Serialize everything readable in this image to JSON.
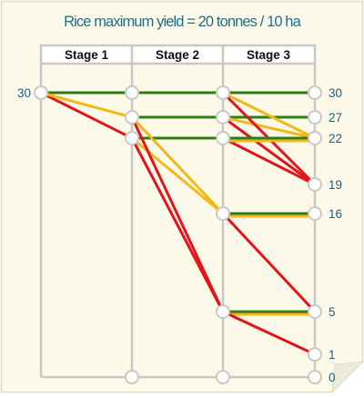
{
  "title": "Rice maximum yield = 20 tonnes / 10 ha",
  "stages": [
    "Stage 1",
    "Stage 2",
    "Stage 3"
  ],
  "start_value": "30",
  "end_values": [
    "30",
    "27",
    "22",
    "19",
    "16",
    "5",
    "1",
    "0"
  ],
  "legend_colors": {
    "green": "#2e7d15",
    "yellow": "#f6b817",
    "red": "#e3141b",
    "frame": "#c9c9c4",
    "node_fill": "#ffffff",
    "text": "#1f5f7a"
  },
  "paths": [
    {
      "color": "green",
      "from": [
        1,
        30
      ],
      "to": [
        2,
        30
      ]
    },
    {
      "color": "red",
      "from": [
        1,
        30
      ],
      "to": [
        2,
        22
      ]
    },
    {
      "color": "yellow",
      "from": [
        1,
        30
      ],
      "to": [
        2,
        27
      ]
    },
    {
      "color": "green",
      "from": [
        2,
        30
      ],
      "to": [
        3,
        30
      ]
    },
    {
      "color": "green",
      "from": [
        2,
        27
      ],
      "to": [
        3,
        27
      ]
    },
    {
      "color": "green",
      "from": [
        2,
        22
      ],
      "to": [
        3,
        22
      ]
    },
    {
      "color": "yellow",
      "from": [
        2,
        27
      ],
      "to": [
        3,
        16
      ]
    },
    {
      "color": "yellow",
      "from": [
        2,
        22
      ],
      "to": [
        3,
        16
      ]
    },
    {
      "color": "red",
      "from": [
        2,
        27
      ],
      "to": [
        3,
        5
      ]
    },
    {
      "color": "red",
      "from": [
        2,
        22
      ],
      "to": [
        3,
        5
      ]
    },
    {
      "color": "green",
      "from": [
        3,
        30
      ],
      "to": [
        4,
        30
      ]
    },
    {
      "color": "green",
      "from": [
        3,
        27
      ],
      "to": [
        4,
        27
      ]
    },
    {
      "color": "yellow",
      "from": [
        3,
        30
      ],
      "to": [
        4,
        22
      ]
    },
    {
      "color": "yellow",
      "from": [
        3,
        27
      ],
      "to": [
        4,
        22
      ]
    },
    {
      "color": "red",
      "from": [
        3,
        30
      ],
      "to": [
        4,
        19
      ]
    },
    {
      "color": "red",
      "from": [
        3,
        27
      ],
      "to": [
        4,
        19
      ]
    },
    {
      "color": "red",
      "from": [
        3,
        22
      ],
      "to": [
        4,
        19
      ]
    },
    {
      "color": "green",
      "from": [
        3,
        22
      ],
      "to": [
        4,
        22
      ]
    },
    {
      "color": "yellow",
      "from": [
        3,
        22
      ],
      "to": [
        4,
        22
      ]
    },
    {
      "color": "green",
      "from": [
        3,
        16
      ],
      "to": [
        4,
        16
      ]
    },
    {
      "color": "yellow",
      "from": [
        3,
        16
      ],
      "to": [
        4,
        16
      ]
    },
    {
      "color": "red",
      "from": [
        3,
        16
      ],
      "to": [
        4,
        5
      ]
    },
    {
      "color": "green",
      "from": [
        3,
        5
      ],
      "to": [
        4,
        5
      ]
    },
    {
      "color": "yellow",
      "from": [
        3,
        5
      ],
      "to": [
        4,
        5
      ]
    },
    {
      "color": "red",
      "from": [
        3,
        5
      ],
      "to": [
        4,
        1
      ]
    }
  ]
}
